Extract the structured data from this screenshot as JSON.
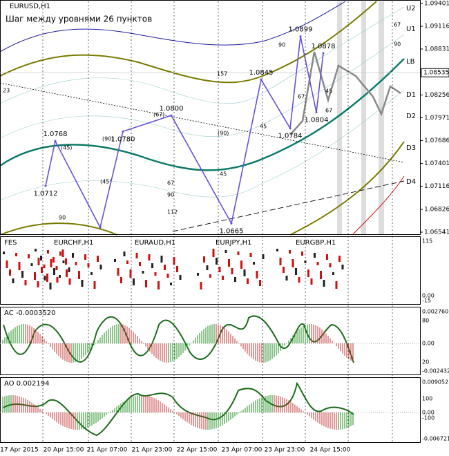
{
  "chart_data": {
    "type": "line",
    "symbol": "EURUSD,H1",
    "title": "Шаг между уровнями 26 пунктов",
    "x": [
      16.5,
      20,
      36.25,
      44.5,
      62,
      83.75,
      94.5,
      105,
      108.75,
      114.5,
      117
    ],
    "values": [
      1.0712,
      1.0768,
      1.066,
      1.078,
      1.08,
      1.0665,
      1.0845,
      1.0784,
      1.0899,
      1.0804,
      1.0878
    ],
    "value_labels": [
      "1.0712",
      "1.0768",
      null,
      "1.0780",
      "1.0800",
      "1.0665",
      "1.0845",
      "1.0784",
      "1.0899",
      "1.0804",
      "1.0878"
    ],
    "color": "#6a4fd6",
    "xlim": [
      0,
      152
    ],
    "ylim": [
      1.06541,
      1.09401
    ],
    "yticks": [
      1.09401,
      1.09116,
      1.08831,
      1.08256,
      1.07971,
      1.07686,
      1.07401,
      1.07116,
      1.06826,
      1.06541
    ],
    "current_price": 1.08535,
    "levels": [
      "U2",
      "U1",
      "LB",
      "D1",
      "D2",
      "D3",
      "D4"
    ],
    "annotations": [
      "23",
      "(45)",
      "(90)",
      "(45)",
      "(67)",
      "(90)",
      "67",
      "90",
      "112",
      "45",
      "90",
      "157",
      "45",
      "67",
      "45",
      "67",
      "90",
      "67",
      "90"
    ],
    "xtick_labels": [
      "17 Apr 2015",
      "20 Apr 15:00",
      "21 Apr 07:00",
      "21 Apr 23:00",
      "22 Apr 15:00",
      "23 Apr 07:00",
      "23 Apr 23:00",
      "24 Apr 15:00"
    ],
    "panels": [
      {
        "title": "FES",
        "subtitles": [
          "EURCHF,H1",
          "EURAUD,H1",
          "EURJPY,H1",
          "EURGBP,H1"
        ],
        "axis_labels": [
          "115",
          "0.00",
          "-15"
        ]
      },
      {
        "title": "AC -0.0003520",
        "axis_labels": [
          "0.002760",
          "80",
          "0.00",
          "20",
          "-0.002432"
        ]
      },
      {
        "title": "AO 0.002194",
        "axis_labels": [
          "0.009052",
          "100",
          "0.00",
          "-100",
          "-0.006721"
        ]
      }
    ]
  }
}
